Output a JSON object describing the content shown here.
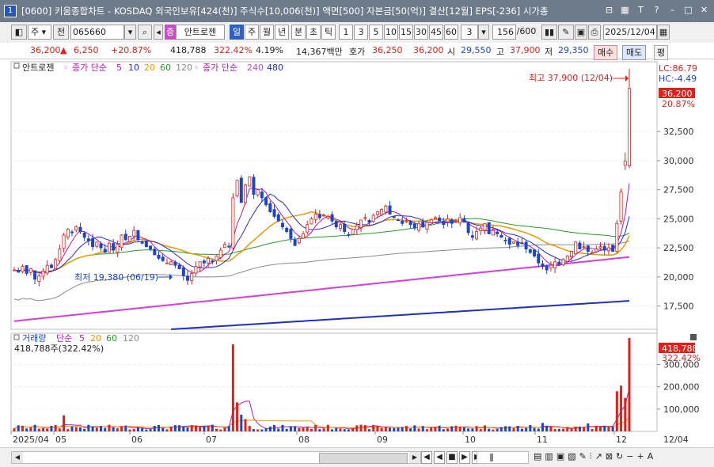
{
  "title_bar": {
    "window_number": "1",
    "text": "[0600] 키움종합차트 - KOSDAQ 외국인보유[424(천)] 주식수[10,006(천)] 액면[500] 자본금[50(억)] 결산[12월] EPS[-236] 시가총"
  },
  "toolbar": {
    "period_label": "주",
    "all_label": "전",
    "stock_code": "065660",
    "stock_badge": "증",
    "stock_name": "안트로젠",
    "period_buttons": [
      "일",
      "주",
      "월",
      "년",
      "분",
      "초",
      "틱"
    ],
    "interval_buttons": [
      "1",
      "3",
      "5",
      "10",
      "15",
      "30",
      "45",
      "60"
    ],
    "interval_value": "3",
    "count": "156",
    "count_max": "/600",
    "date": "2025/12/04"
  },
  "quote": {
    "price": "36,200",
    "change_arrow": "▲",
    "change": "6,250",
    "change_pct": "+20.87%",
    "volume": "418,788",
    "volume_pct": "322.42%",
    "turnover_pct": "4.19%",
    "amount": "14,367백만",
    "ask_label": "호가",
    "ask": "36,250",
    "bid": "36,200",
    "open_label": "시",
    "open": "29,550",
    "high_label": "고",
    "high": "37,900",
    "low_label": "저",
    "low": "29,350",
    "buy_label": "매수",
    "sell_label": "매도",
    "eval_label": "평"
  },
  "price_panel": {
    "legend_name": "안트로젠",
    "legend_ma_label": "종가 단순",
    "legend_ma_periods": [
      "5",
      "10",
      "20",
      "60",
      "120"
    ],
    "legend_ma2_label": "종가 단순",
    "legend_ma2_periods": [
      "240",
      "480"
    ],
    "lc_label": "LC:86.79",
    "hc_label": "HC:-4.49",
    "current_price_tag": "36,200",
    "current_pct_tag": "20.87%",
    "high_annotation": "최고 37,900 (12/04)",
    "low_annotation": "최저 19,380 (06/19)"
  },
  "volume_panel": {
    "legend_name": "거래량",
    "legend_ma_label": "단순",
    "legend_ma_periods": [
      "5",
      "20",
      "60",
      "120"
    ],
    "current_label": "418,788주(322.42%)",
    "current_tag": "418,788",
    "current_pct_tag": "322.42%"
  },
  "colors": {
    "up": "#e0201a",
    "down": "#1d45c8",
    "ma5": "#b31bb3",
    "ma10": "#2b2bd6",
    "ma20": "#e89a00",
    "ma60": "#2a9a2a",
    "ma120": "#8c8c8c",
    "ma240": "#d53fd5",
    "ma480": "#1f2fc6"
  },
  "chart_data": {
    "type": "candlestick",
    "price_axis_ticks": [
      17500,
      20000,
      22500,
      25000,
      27500,
      30000,
      32500
    ],
    "price_axis_labels": [
      "17,500",
      "20,000",
      "22,500",
      "25,000",
      "27,500",
      "30,000",
      "32,500"
    ],
    "price_range": [
      15500,
      38500
    ],
    "volume_axis_ticks": [
      100000,
      200000,
      300000
    ],
    "volume_axis_labels": [
      "100,000",
      "200,000",
      "300,000"
    ],
    "volume_range": [
      0,
      440000
    ],
    "x_labels": [
      "2025/04",
      "05",
      "06",
      "07",
      "08",
      "09",
      "10",
      "11",
      "12",
      "12/04"
    ],
    "recent_candles": [
      {
        "date": "12/01",
        "open": 22200,
        "high": 24900,
        "low": 22000,
        "close": 24600
      },
      {
        "date": "12/02",
        "open": 24800,
        "high": 27600,
        "low": 24500,
        "close": 27300
      },
      {
        "date": "12/03",
        "open": 29600,
        "high": 30700,
        "low": 29200,
        "close": 29950
      },
      {
        "date": "12/04",
        "open": 29550,
        "high": 37900,
        "low": 29350,
        "close": 36200
      }
    ],
    "recent_volumes": [
      180000,
      205000,
      150000,
      418788
    ],
    "high_point": {
      "date": "12/04",
      "value": 37900
    },
    "low_point": {
      "date": "06/19",
      "value": 19380
    }
  }
}
